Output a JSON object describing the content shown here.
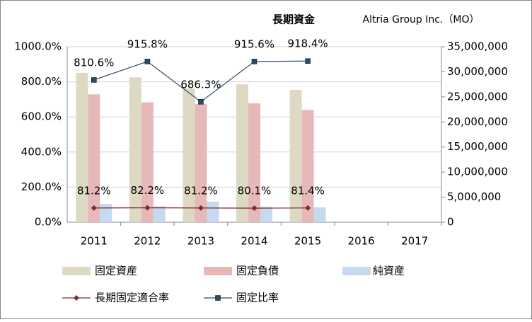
{
  "chart_data": {
    "type": "bar_line",
    "title": "長期資金",
    "subtitle": "Altria Group Inc.（MO）",
    "categories": [
      "2011",
      "2012",
      "2013",
      "2014",
      "2015",
      "2016",
      "2017"
    ],
    "series": [
      {
        "name": "固定資産",
        "type": "bar",
        "axis": "y2",
        "color": "#ddd9c3",
        "values": [
          29800000,
          28900000,
          26700000,
          27500000,
          26400000,
          null,
          null
        ]
      },
      {
        "name": "固定負債",
        "type": "bar",
        "axis": "y2",
        "color": "#e6b9b8",
        "values": [
          25500000,
          23900000,
          23600000,
          23700000,
          22400000,
          null,
          null
        ]
      },
      {
        "name": "純資産",
        "type": "bar",
        "axis": "y2",
        "color": "#c6d9f1",
        "values": [
          3670000,
          3200000,
          4100000,
          3100000,
          2960000,
          null,
          null
        ]
      },
      {
        "name": "長期固定適合率",
        "type": "line",
        "color": "#7b2c2c",
        "marker": "diamond",
        "values": [
          81.2,
          82.2,
          81.2,
          80.1,
          81.4,
          null,
          null
        ],
        "value_labels": [
          "81.2%",
          "82.2%",
          "81.2%",
          "80.1%",
          "81.4%",
          null,
          null
        ]
      },
      {
        "name": "固定比率",
        "type": "line",
        "color": "#2a4a68",
        "marker": "square",
        "values": [
          810.6,
          915.8,
          686.3,
          915.6,
          918.4,
          null,
          null
        ],
        "value_labels": [
          "810.6%",
          "915.8%",
          "686.3%",
          "915.6%",
          "918.4%",
          null,
          null
        ]
      }
    ],
    "ylim": [
      0,
      1000
    ],
    "yticks": [
      {
        "value": 0,
        "label": "0.0%"
      },
      {
        "value": 200,
        "label": "200.0%"
      },
      {
        "value": 400,
        "label": "400.0%"
      },
      {
        "value": 600,
        "label": "600.0%"
      },
      {
        "value": 800,
        "label": "800.0%"
      },
      {
        "value": 1000,
        "label": "1000.0%"
      }
    ],
    "y2lim": [
      0,
      35000000
    ],
    "y2ticks": [
      0,
      {
        "value": 5000000,
        "label": "5,000,000"
      },
      {
        "value": 10000000,
        "label": "10,000,000"
      },
      {
        "value": 15000000,
        "label": "15,000,000"
      },
      {
        "value": 20000000,
        "label": "20,000,000"
      },
      {
        "value": 25000000,
        "label": "25,000,000"
      },
      {
        "value": 30000000,
        "label": "30,000,000"
      },
      {
        "value": 35000000,
        "label": "35,000,000"
      }
    ],
    "grid": true,
    "legend": "bottom"
  }
}
